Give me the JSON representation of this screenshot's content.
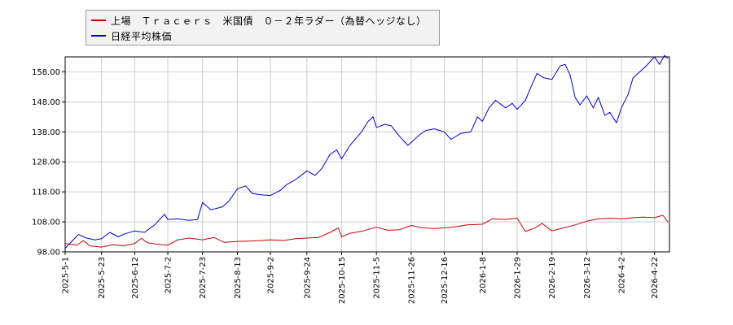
{
  "chart_data": {
    "type": "line",
    "title": "",
    "xlabel": "",
    "ylabel": "",
    "ylim": [
      98,
      163
    ],
    "grid": true,
    "legend_position": "top-left",
    "x_ticks": [
      "2025-5-1",
      "2025-5-23",
      "2025-6-12",
      "2025-7-2",
      "2025-7-23",
      "2025-8-13",
      "2025-9-2",
      "2025-9-24",
      "2025-10-15",
      "2025-11-5",
      "2025-11-26",
      "2025-12-16",
      "2026-1-8",
      "2026-1-29",
      "2026-2-19",
      "2026-3-12",
      "2026-4-2",
      "2026-4-22"
    ],
    "y_ticks": [
      "98.00",
      "108.00",
      "118.00",
      "128.00",
      "138.00",
      "148.00",
      "158.00"
    ],
    "y_tick_values": [
      98,
      108,
      118,
      128,
      138,
      148,
      158
    ],
    "series": [
      {
        "name": "上場　Ｔｒａｃｅｒｓ　米国債　０－２年ラダー（為替ヘッジなし）",
        "color": "#cc0000",
        "points": [
          [
            "2025-5-1",
            100.8
          ],
          [
            "2025-5-8",
            100.2
          ],
          [
            "2025-5-12",
            101.8
          ],
          [
            "2025-5-16",
            100.0
          ],
          [
            "2025-5-23",
            99.6
          ],
          [
            "2025-5-30",
            100.4
          ],
          [
            "2025-6-5",
            100.0
          ],
          [
            "2025-6-12",
            100.8
          ],
          [
            "2025-6-16",
            102.5
          ],
          [
            "2025-6-20",
            101.0
          ],
          [
            "2025-6-26",
            100.5
          ],
          [
            "2025-7-2",
            100.2
          ],
          [
            "2025-7-8",
            102.0
          ],
          [
            "2025-7-15",
            102.6
          ],
          [
            "2025-7-23",
            102.0
          ],
          [
            "2025-7-30",
            102.8
          ],
          [
            "2025-8-5",
            101.2
          ],
          [
            "2025-8-13",
            101.5
          ],
          [
            "2025-8-20",
            101.6
          ],
          [
            "2025-8-27",
            101.8
          ],
          [
            "2025-9-2",
            102.0
          ],
          [
            "2025-9-10",
            101.8
          ],
          [
            "2025-9-17",
            102.4
          ],
          [
            "2025-9-24",
            102.6
          ],
          [
            "2025-10-1",
            102.8
          ],
          [
            "2025-10-8",
            104.5
          ],
          [
            "2025-10-13",
            106.0
          ],
          [
            "2025-10-15",
            103.0
          ],
          [
            "2025-10-20",
            104.2
          ],
          [
            "2025-10-28",
            105.0
          ],
          [
            "2025-11-5",
            106.2
          ],
          [
            "2025-11-12",
            105.2
          ],
          [
            "2025-11-19",
            105.4
          ],
          [
            "2025-11-26",
            106.8
          ],
          [
            "2025-12-3",
            106.0
          ],
          [
            "2025-12-10",
            105.8
          ],
          [
            "2025-12-16",
            106.0
          ],
          [
            "2025-12-23",
            106.4
          ],
          [
            "2025-12-30",
            107.0
          ],
          [
            "2026-1-8",
            107.2
          ],
          [
            "2026-1-14",
            109.0
          ],
          [
            "2026-1-22",
            108.8
          ],
          [
            "2026-1-29",
            109.2
          ],
          [
            "2026-2-3",
            104.8
          ],
          [
            "2026-2-9",
            106.0
          ],
          [
            "2026-2-13",
            107.5
          ],
          [
            "2026-2-19",
            105.0
          ],
          [
            "2026-2-26",
            106.0
          ],
          [
            "2026-3-5",
            107.0
          ],
          [
            "2026-3-12",
            108.2
          ],
          [
            "2026-3-19",
            109.0
          ],
          [
            "2026-3-26",
            109.2
          ],
          [
            "2026-4-2",
            109.0
          ],
          [
            "2026-4-9",
            109.4
          ],
          [
            "2026-4-15",
            109.6
          ],
          [
            "2026-4-22",
            109.4
          ],
          [
            "2026-4-27",
            110.2
          ],
          [
            "2026-4-30",
            108.0
          ]
        ]
      },
      {
        "name": "日経平均株価",
        "color": "#0000cc",
        "points": [
          [
            "2025-5-1",
            99.2
          ],
          [
            "2025-5-5",
            101.5
          ],
          [
            "2025-5-9",
            103.8
          ],
          [
            "2025-5-14",
            102.6
          ],
          [
            "2025-5-19",
            102.0
          ],
          [
            "2025-5-23",
            102.4
          ],
          [
            "2025-5-28",
            104.5
          ],
          [
            "2025-6-2",
            103.0
          ],
          [
            "2025-6-6",
            104.0
          ],
          [
            "2025-6-12",
            105.0
          ],
          [
            "2025-6-18",
            104.5
          ],
          [
            "2025-6-24",
            107.0
          ],
          [
            "2025-6-30",
            110.5
          ],
          [
            "2025-7-2",
            108.8
          ],
          [
            "2025-7-8",
            109.0
          ],
          [
            "2025-7-15",
            108.5
          ],
          [
            "2025-7-20",
            108.8
          ],
          [
            "2025-7-23",
            114.5
          ],
          [
            "2025-7-28",
            112.0
          ],
          [
            "2025-8-4",
            113.0
          ],
          [
            "2025-8-8",
            115.0
          ],
          [
            "2025-8-13",
            119.0
          ],
          [
            "2025-8-18",
            120.0
          ],
          [
            "2025-8-22",
            117.5
          ],
          [
            "2025-8-27",
            117.0
          ],
          [
            "2025-9-2",
            116.8
          ],
          [
            "2025-9-8",
            118.5
          ],
          [
            "2025-9-12",
            120.5
          ],
          [
            "2025-9-17",
            122.0
          ],
          [
            "2025-9-24",
            125.0
          ],
          [
            "2025-9-29",
            123.5
          ],
          [
            "2025-10-3",
            125.8
          ],
          [
            "2025-10-8",
            130.5
          ],
          [
            "2025-10-12",
            132.0
          ],
          [
            "2025-10-15",
            129.0
          ],
          [
            "2025-10-20",
            133.5
          ],
          [
            "2025-10-27",
            138.0
          ],
          [
            "2025-10-31",
            141.5
          ],
          [
            "2025-11-3",
            143.0
          ],
          [
            "2025-11-5",
            139.5
          ],
          [
            "2025-11-10",
            140.5
          ],
          [
            "2025-11-14",
            140.0
          ],
          [
            "2025-11-19",
            136.5
          ],
          [
            "2025-11-24",
            133.5
          ],
          [
            "2025-11-26",
            134.5
          ],
          [
            "2025-12-1",
            137.0
          ],
          [
            "2025-12-5",
            138.5
          ],
          [
            "2025-12-10",
            139.0
          ],
          [
            "2025-12-16",
            138.0
          ],
          [
            "2025-12-20",
            135.5
          ],
          [
            "2025-12-26",
            137.5
          ],
          [
            "2026-1-1",
            138.0
          ],
          [
            "2026-1-5",
            143.0
          ],
          [
            "2026-1-8",
            141.5
          ],
          [
            "2026-1-12",
            146.0
          ],
          [
            "2026-1-16",
            148.5
          ],
          [
            "2026-1-22",
            146.0
          ],
          [
            "2026-1-26",
            147.5
          ],
          [
            "2026-1-29",
            145.5
          ],
          [
            "2026-2-3",
            148.5
          ],
          [
            "2026-2-6",
            152.5
          ],
          [
            "2026-2-10",
            157.5
          ],
          [
            "2026-2-14",
            156.0
          ],
          [
            "2026-2-19",
            155.5
          ],
          [
            "2026-2-24",
            160.0
          ],
          [
            "2026-2-27",
            160.5
          ],
          [
            "2026-3-2",
            157.0
          ],
          [
            "2026-3-5",
            149.5
          ],
          [
            "2026-3-8",
            147.0
          ],
          [
            "2026-3-12",
            150.0
          ],
          [
            "2026-3-16",
            146.0
          ],
          [
            "2026-3-19",
            149.5
          ],
          [
            "2026-3-23",
            143.5
          ],
          [
            "2026-3-26",
            144.5
          ],
          [
            "2026-3-30",
            141.0
          ],
          [
            "2026-4-2",
            146.0
          ],
          [
            "2026-4-6",
            150.5
          ],
          [
            "2026-4-9",
            156.0
          ],
          [
            "2026-4-13",
            158.0
          ],
          [
            "2026-4-17",
            160.0
          ],
          [
            "2026-4-22",
            163.0
          ],
          [
            "2026-4-25",
            160.5
          ],
          [
            "2026-4-28",
            163.5
          ],
          [
            "2026-4-30",
            162.5
          ]
        ]
      }
    ]
  }
}
